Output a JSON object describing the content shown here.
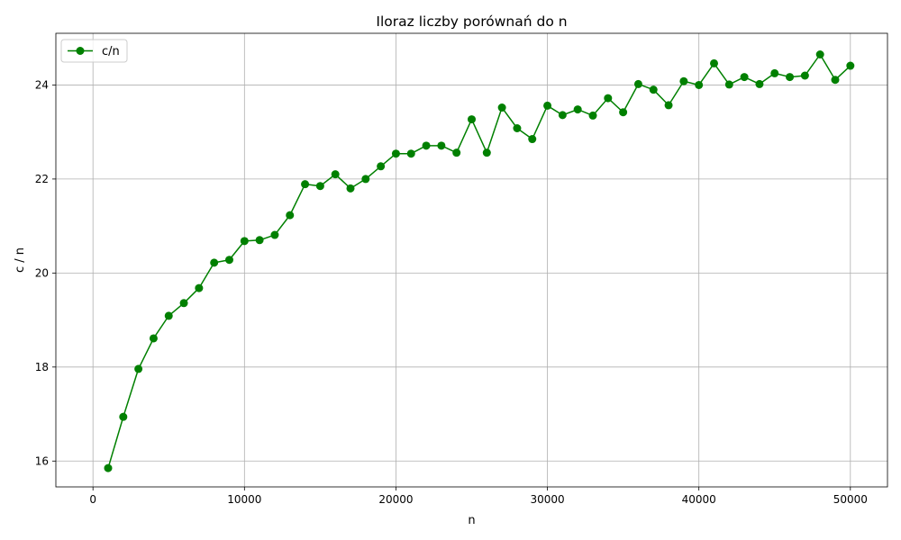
{
  "chart_data": {
    "type": "line",
    "title": "Iloraz liczby porównań do n",
    "xlabel": "n",
    "ylabel": "c / n",
    "xlim": [
      -2450,
      52450
    ],
    "ylim": [
      15.45,
      25.1
    ],
    "xticks": [
      0,
      10000,
      20000,
      30000,
      40000,
      50000
    ],
    "yticks": [
      16,
      18,
      20,
      22,
      24
    ],
    "grid": true,
    "legend": "upper-left",
    "series": [
      {
        "name": "c/n",
        "color": "#008000",
        "marker": "circle",
        "x": [
          1000,
          2000,
          3000,
          4000,
          5000,
          6000,
          7000,
          8000,
          9000,
          10000,
          11000,
          12000,
          13000,
          14000,
          15000,
          16000,
          17000,
          18000,
          19000,
          20000,
          21000,
          22000,
          23000,
          24000,
          25000,
          26000,
          27000,
          28000,
          29000,
          30000,
          31000,
          32000,
          33000,
          34000,
          35000,
          36000,
          37000,
          38000,
          39000,
          40000,
          41000,
          42000,
          43000,
          44000,
          45000,
          46000,
          47000,
          48000,
          49000,
          50000
        ],
        "y": [
          15.85,
          16.94,
          17.96,
          18.61,
          19.09,
          19.36,
          19.68,
          20.22,
          20.28,
          20.68,
          20.7,
          20.81,
          21.23,
          21.89,
          21.85,
          22.1,
          21.8,
          22.0,
          22.27,
          22.54,
          22.54,
          22.71,
          22.71,
          22.56,
          23.27,
          22.56,
          23.52,
          23.08,
          22.85,
          23.56,
          23.36,
          23.48,
          23.35,
          23.72,
          23.42,
          24.02,
          23.9,
          23.57,
          24.08,
          24.0,
          24.46,
          24.01,
          24.17,
          24.02,
          24.25,
          24.17,
          24.2,
          24.65,
          24.11,
          24.41
        ]
      }
    ]
  }
}
